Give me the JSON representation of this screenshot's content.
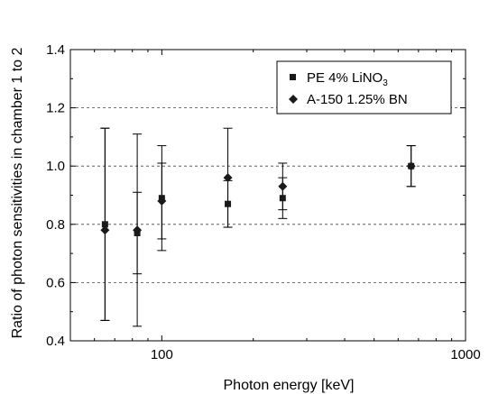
{
  "chart_data": {
    "type": "scatter",
    "title": "",
    "xlabel": "Photon energy [keV]",
    "ylabel": "Ratio of photon sensitivities in chamber 1 to 2",
    "x_scale": "log",
    "xlim": [
      50,
      1000
    ],
    "ylim": [
      0.4,
      1.4
    ],
    "x_ticks": [
      100,
      1000
    ],
    "x_tick_labels": [
      "100",
      "1000"
    ],
    "y_ticks": [
      0.4,
      0.6,
      0.8,
      1.0,
      1.2,
      1.4
    ],
    "y_tick_labels": [
      "0.4",
      "0.6",
      "0.8",
      "1.0",
      "1.2",
      "1.4"
    ],
    "grid": "horizontal dashed",
    "legend_position": "top-right",
    "series": [
      {
        "name": "PE 4% LiNO3",
        "label_main": "PE 4% LiNO",
        "label_sub": "3",
        "marker": "square",
        "points": [
          {
            "x": 65,
            "y": 0.8,
            "yerr": [
              0.47,
              1.13
            ]
          },
          {
            "x": 83,
            "y": 0.77,
            "yerr": [
              0.63,
              0.91
            ]
          },
          {
            "x": 100,
            "y": 0.89,
            "yerr": [
              0.75,
              1.01
            ]
          },
          {
            "x": 165,
            "y": 0.87,
            "yerr": [
              0.79,
              0.95
            ]
          },
          {
            "x": 250,
            "y": 0.89,
            "yerr": [
              0.82,
              0.96
            ]
          },
          {
            "x": 662,
            "y": 1.0,
            "yerr": [
              0.93,
              1.07
            ]
          }
        ]
      },
      {
        "name": "A-150 1.25% BN",
        "label_main": "A-150 1.25% BN",
        "marker": "diamond",
        "points": [
          {
            "x": 65,
            "y": 0.78,
            "yerr": [
              0.47,
              1.13
            ]
          },
          {
            "x": 83,
            "y": 0.78,
            "yerr": [
              0.45,
              1.11
            ]
          },
          {
            "x": 100,
            "y": 0.88,
            "yerr": [
              0.71,
              1.07
            ]
          },
          {
            "x": 165,
            "y": 0.96,
            "yerr": [
              0.79,
              1.13
            ]
          },
          {
            "x": 250,
            "y": 0.93,
            "yerr": [
              0.85,
              1.01
            ]
          },
          {
            "x": 662,
            "y": 1.0,
            "yerr": [
              0.93,
              1.07
            ]
          }
        ]
      }
    ]
  }
}
